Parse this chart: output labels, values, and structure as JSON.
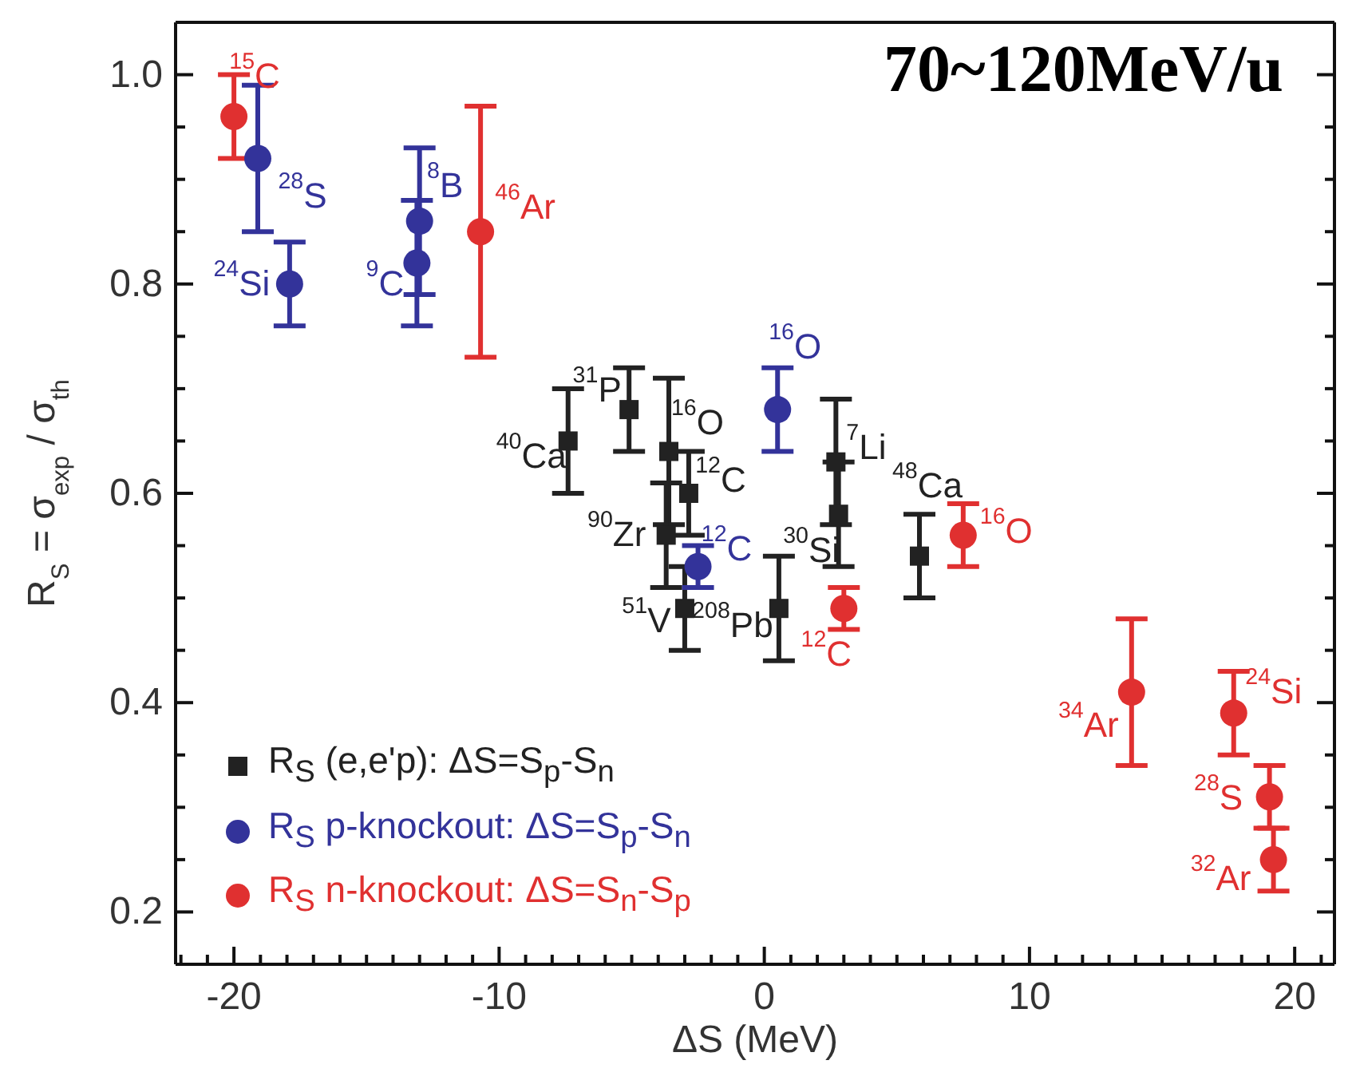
{
  "chart_data": {
    "type": "scatter",
    "title": "70~120MeV/u",
    "xlabel": "ΔS (MeV)",
    "ylabel": "R$_{S}$ = σ$_{exp}$ / σ$_{th}$",
    "xlim": [
      -22.2,
      21.5
    ],
    "xticks": [
      {
        "value": -22,
        "label": null
      },
      {
        "value": -21,
        "label": null
      },
      -20,
      {
        "value": -19,
        "label": null
      },
      {
        "value": -18,
        "label": null
      },
      {
        "value": -17,
        "label": null
      },
      {
        "value": -16,
        "label": null
      },
      {
        "value": -15,
        "label": null
      },
      {
        "value": -14,
        "label": null
      },
      {
        "value": -13,
        "label": null
      },
      {
        "value": -12,
        "label": null
      },
      {
        "value": -11,
        "label": null
      },
      -10,
      {
        "value": -9,
        "label": null
      },
      {
        "value": -8,
        "label": null
      },
      {
        "value": -7,
        "label": null
      },
      {
        "value": -6,
        "label": null
      },
      {
        "value": -5,
        "label": null
      },
      {
        "value": -4,
        "label": null
      },
      {
        "value": -3,
        "label": null
      },
      {
        "value": -2,
        "label": null
      },
      {
        "value": -1,
        "label": null
      },
      0,
      {
        "value": 1,
        "label": null
      },
      {
        "value": 2,
        "label": null
      },
      {
        "value": 3,
        "label": null
      },
      {
        "value": 4,
        "label": null
      },
      {
        "value": 5,
        "label": null
      },
      {
        "value": 6,
        "label": null
      },
      {
        "value": 7,
        "label": null
      },
      {
        "value": 8,
        "label": null
      },
      {
        "value": 9,
        "label": null
      },
      10,
      {
        "value": 11,
        "label": null
      },
      {
        "value": 12,
        "label": null
      },
      {
        "value": 13,
        "label": null
      },
      {
        "value": 14,
        "label": null
      },
      {
        "value": 15,
        "label": null
      },
      {
        "value": 16,
        "label": null
      },
      {
        "value": 17,
        "label": null
      },
      {
        "value": 18,
        "label": null
      },
      {
        "value": 19,
        "label": null
      },
      20,
      {
        "value": 21,
        "label": null
      }
    ],
    "ylim": [
      0.15,
      1.05
    ],
    "yticks": [
      {
        "value": 0.2,
        "label": "0.2"
      },
      {
        "value": 0.25,
        "label": null
      },
      {
        "value": 0.3,
        "label": null
      },
      {
        "value": 0.35,
        "label": null
      },
      {
        "value": 0.4,
        "label": "0.4"
      },
      {
        "value": 0.45,
        "label": null
      },
      {
        "value": 0.5,
        "label": null
      },
      {
        "value": 0.55,
        "label": null
      },
      {
        "value": 0.6,
        "label": "0.6"
      },
      {
        "value": 0.65,
        "label": null
      },
      {
        "value": 0.7,
        "label": null
      },
      {
        "value": 0.75,
        "label": null
      },
      {
        "value": 0.8,
        "label": "0.8"
      },
      {
        "value": 0.85,
        "label": null
      },
      {
        "value": 0.9,
        "label": null
      },
      {
        "value": 0.95,
        "label": null
      },
      {
        "value": 1.0,
        "label": "1.0"
      }
    ],
    "grid": false,
    "legend": "bottom left",
    "series": [
      {
        "name": "R$_{S}$  (e,e'p): ΔS=S$_{p}$-S$_{n}$",
        "color": "#222222",
        "marker": "square",
        "x": [
          -7.4,
          -5.1,
          -3.6,
          -2.85,
          -3.7,
          -3.0,
          0.55,
          2.7,
          2.8,
          5.85
        ],
        "values": [
          0.65,
          0.68,
          0.64,
          0.6,
          0.56,
          0.49,
          0.49,
          0.63,
          0.58,
          0.54
        ],
        "errors": [
          0.05,
          0.04,
          0.07,
          0.04,
          0.05,
          0.04,
          0.05,
          0.06,
          0.05,
          0.04
        ]
      },
      {
        "name": "R$_{S}$  p-knockout: ΔS=S$_{p}$-S$_{n}$",
        "color": "#33339a",
        "marker": "circle",
        "x": [
          -19.1,
          -17.9,
          -13.0,
          -13.1,
          0.5,
          -2.5
        ],
        "values": [
          0.92,
          0.8,
          0.86,
          0.82,
          0.68,
          0.53
        ],
        "errors": [
          0.07,
          0.04,
          0.07,
          0.06,
          0.04,
          0.02
        ]
      },
      {
        "name": "R$_{S}$  n-knockout: ΔS=S$_{n}$-S$_{p}$",
        "color": "#e03030",
        "marker": "circle",
        "x": [
          -20.0,
          -10.7,
          3.0,
          7.5,
          13.85,
          17.7,
          19.05,
          19.2
        ],
        "values": [
          0.96,
          0.85,
          0.49,
          0.56,
          0.41,
          0.39,
          0.31,
          0.25
        ],
        "errors": [
          0.04,
          0.12,
          0.02,
          0.03,
          0.07,
          0.04,
          0.03,
          0.03
        ]
      }
    ],
    "annotations": [
      {
        "text": "$^{15}$C",
        "x": -20.0,
        "y": 0.96
      },
      {
        "text": "$^{46}$Ar",
        "x": -10.7,
        "y": 0.85
      },
      {
        "text": "$^{12}$C",
        "x": 3.0,
        "y": 0.49
      },
      {
        "text": "$^{16}$O",
        "x": 7.5,
        "y": 0.56
      },
      {
        "text": "$^{34}$Ar",
        "x": 13.85,
        "y": 0.41
      },
      {
        "text": "$^{24}$Si",
        "x": 17.7,
        "y": 0.39
      },
      {
        "text": "$^{28}$S",
        "x": 19.05,
        "y": 0.31
      },
      {
        "text": "$^{32}$Ar",
        "x": 19.2,
        "y": 0.25
      },
      {
        "text": "$^{28}$S",
        "x": -19.1,
        "y": 0.92
      },
      {
        "text": "$^{24}$Si",
        "x": -17.9,
        "y": 0.8
      },
      {
        "text": "$^{8}$B",
        "x": -13.0,
        "y": 0.86
      },
      {
        "text": "$^{9}$C",
        "x": -13.1,
        "y": 0.82
      },
      {
        "text": "$^{16}$O",
        "x": 0.5,
        "y": 0.68
      },
      {
        "text": "$^{12}$C",
        "x": -2.5,
        "y": 0.53
      },
      {
        "text": "$^{40}$Ca",
        "x": -7.4,
        "y": 0.65
      },
      {
        "text": "$^{31}$P",
        "x": -5.1,
        "y": 0.68
      },
      {
        "text": "$^{16}$O",
        "x": -3.6,
        "y": 0.64
      },
      {
        "text": "$^{12}$C",
        "x": -2.85,
        "y": 0.6
      },
      {
        "text": "$^{90}$Zr",
        "x": -3.7,
        "y": 0.56
      },
      {
        "text": "$^{51}$V",
        "x": -3.0,
        "y": 0.49
      },
      {
        "text": "$^{208}$Pb",
        "x": 0.55,
        "y": 0.49
      },
      {
        "text": "$^{7}$Li",
        "x": 2.7,
        "y": 0.63
      },
      {
        "text": "$^{30}$Si",
        "x": 2.8,
        "y": 0.58
      },
      {
        "text": "$^{48}$Ca",
        "x": 5.85,
        "y": 0.54
      }
    ]
  }
}
